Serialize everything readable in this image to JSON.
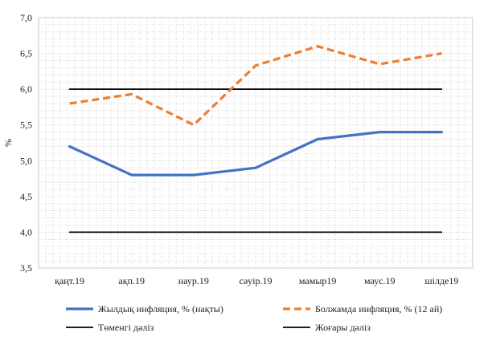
{
  "chart_data": {
    "type": "line",
    "categories": [
      "қаңт.19",
      "ақп.19",
      "наур.19",
      "сәуір.19",
      "мамыр19",
      "маус.19",
      "шілде19"
    ],
    "ylabel": "%",
    "ylim": [
      3.5,
      7.0
    ],
    "ytick_labels": [
      "3,5",
      "4,0",
      "4,5",
      "5,0",
      "5,5",
      "6,0",
      "6,5",
      "7,0"
    ],
    "yticks": [
      3.5,
      4.0,
      4.5,
      5.0,
      5.5,
      6.0,
      6.5,
      7.0
    ],
    "grid": "dotted",
    "legend_position": "bottom",
    "series": [
      {
        "name": "Жылдық инфляция, % (нақты)",
        "values": [
          5.2,
          4.8,
          4.8,
          4.9,
          5.3,
          5.4,
          5.4
        ],
        "color": "#4472C4",
        "style": "solid"
      },
      {
        "name": "Болжамда инфляция, % (12 ай)",
        "values": [
          5.8,
          5.93,
          5.5,
          6.33,
          6.6,
          6.35,
          6.5
        ],
        "color": "#ED7D31",
        "style": "dashed"
      },
      {
        "name": "Төменгі дәліз",
        "values": [
          4.0,
          4.0,
          4.0,
          4.0,
          4.0,
          4.0,
          4.0
        ],
        "color": "#000000",
        "style": "solid"
      },
      {
        "name": "Жоғары дәліз",
        "values": [
          6.0,
          6.0,
          6.0,
          6.0,
          6.0,
          6.0,
          6.0
        ],
        "color": "#000000",
        "style": "solid"
      }
    ]
  }
}
